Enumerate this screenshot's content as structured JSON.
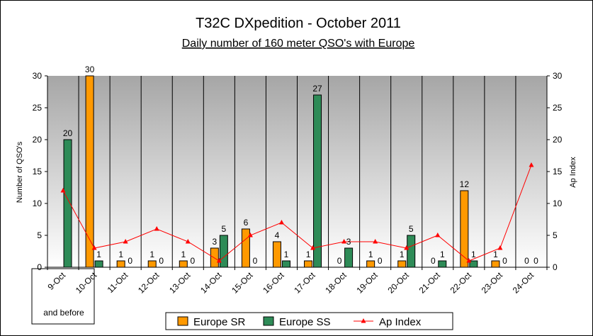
{
  "chart_data": {
    "type": "bar",
    "title": "T32C DXpedition - October 2011",
    "subtitle": "Daily number of 160 meter QSO's with Europe",
    "categories": [
      "9-Oct",
      "10-Oct",
      "11-Oct",
      "12-Oct",
      "13-Oct",
      "14-Oct",
      "15-Oct",
      "16-Oct",
      "17-Oct",
      "18-Oct",
      "19-Oct",
      "20-Oct",
      "21-Oct",
      "22-Oct",
      "23-Oct",
      "24-Oct"
    ],
    "category_note": "and before",
    "ylabel": "Number of QSO's",
    "y2label": "Ap Index",
    "ylim": [
      0,
      30
    ],
    "y2lim": [
      0,
      30
    ],
    "yticks": [
      0,
      5,
      10,
      15,
      20,
      25,
      30
    ],
    "grid": true,
    "legend_position": "bottom",
    "series": [
      {
        "name": "Europe SR",
        "type": "bar",
        "color": "#ff9900",
        "values": [
          0,
          30,
          1,
          1,
          1,
          3,
          6,
          4,
          1,
          0,
          1,
          1,
          0,
          12,
          1,
          0
        ]
      },
      {
        "name": "Europe SS",
        "type": "bar",
        "color": "#2e8b57",
        "values": [
          20,
          1,
          0,
          0,
          0,
          5,
          0,
          1,
          27,
          3,
          0,
          5,
          1,
          1,
          0,
          0
        ]
      },
      {
        "name": "Ap Index",
        "type": "line",
        "axis": "right",
        "color": "#ff0000",
        "values": [
          12,
          3,
          4,
          6,
          4,
          1,
          5,
          7,
          3,
          4,
          4,
          3,
          5,
          1,
          3,
          16
        ]
      }
    ],
    "data_labels": {
      "Europe SR": [
        "",
        "30",
        "1",
        "1",
        "1",
        "3",
        "6",
        "4",
        "1",
        "0",
        "1",
        "1",
        "0",
        "12",
        "1",
        "0"
      ],
      "Europe SS": [
        "20",
        "1",
        "0",
        "0",
        "0",
        "5",
        "0",
        "1",
        "27",
        "3",
        "0",
        "5",
        "1",
        "1",
        "0",
        "0"
      ]
    }
  }
}
